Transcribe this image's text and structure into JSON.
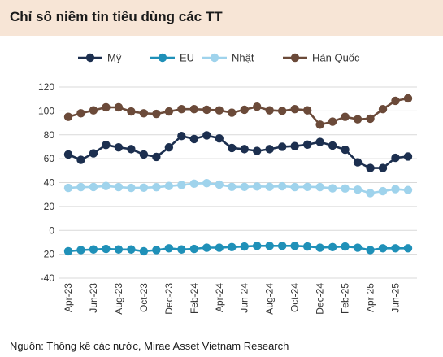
{
  "header": {
    "title": "Chỉ số niềm tin tiêu dùng các TT"
  },
  "footer": {
    "source": "Nguồn: Thống kê các nước, Mirae Asset Vietnam Research"
  },
  "colors": {
    "my": "#1c2f4f",
    "eu": "#1f90b8",
    "nhat": "#9fd3ec",
    "hanquoc": "#6b4a39",
    "grid": "#d9d9d9",
    "header_band": "#f7e5d6"
  },
  "chart_data": {
    "type": "line",
    "title": "",
    "xlabel": "",
    "ylabel": "",
    "ylim": [
      -40,
      120
    ],
    "yticks": [
      -40,
      -20,
      0,
      20,
      40,
      60,
      80,
      100,
      120
    ],
    "grid": "horizontal",
    "legend_position": "top",
    "x": [
      "Apr-23",
      "May-23",
      "Jun-23",
      "Jul-23",
      "Aug-23",
      "Sep-23",
      "Oct-23",
      "Nov-23",
      "Dec-23",
      "Jan-24",
      "Feb-24",
      "Mar-24",
      "Apr-24",
      "May-24",
      "Jun-24",
      "Jul-24",
      "Aug-24",
      "Sep-24",
      "Oct-24",
      "Nov-24",
      "Dec-24",
      "Jan-25",
      "Feb-25",
      "Mar-25",
      "Apr-25",
      "May-25",
      "Jun-25",
      "Jul-25"
    ],
    "xtick_labels": [
      "Apr-23",
      "Jun-23",
      "Aug-23",
      "Oct-23",
      "Dec-23",
      "Feb-24",
      "Apr-24",
      "Jun-24",
      "Aug-24",
      "Oct-24",
      "Dec-24",
      "Feb-25",
      "Apr-25",
      "Jun-25"
    ],
    "series": [
      {
        "name": "Mỹ",
        "color_key": "my",
        "values": [
          63.5,
          59,
          64.5,
          71.5,
          69.5,
          68,
          63.5,
          61.5,
          69.5,
          79,
          76.5,
          79.5,
          77,
          69,
          68,
          66.5,
          68,
          70,
          70.5,
          71.8,
          74,
          71,
          67.5,
          57,
          52.2,
          52.2,
          60.7,
          61.8
        ]
      },
      {
        "name": "EU",
        "color_key": "eu",
        "values": [
          -17.5,
          -16.5,
          -16,
          -15.5,
          -16,
          -16,
          -17.5,
          -16.5,
          -15,
          -16,
          -15.5,
          -14.5,
          -14.5,
          -14,
          -13.5,
          -13,
          -13,
          -13,
          -13,
          -13.5,
          -14.5,
          -14,
          -13.5,
          -14.5,
          -16.5,
          -15,
          -15,
          -15
        ]
      },
      {
        "name": "Nhật",
        "color_key": "nhat",
        "values": [
          35.5,
          36.2,
          36.3,
          37.1,
          36.2,
          35.5,
          35.7,
          36.1,
          37.1,
          38.0,
          39.1,
          39.5,
          38.3,
          36.4,
          36.4,
          36.7,
          36.5,
          36.9,
          36.2,
          36.4,
          36.2,
          35.2,
          35.0,
          34.1,
          31.2,
          32.8,
          34.5,
          33.7
        ]
      },
      {
        "name": "Hàn Quốc",
        "color_key": "hanquoc",
        "values": [
          95,
          98,
          100.5,
          103,
          103,
          99.5,
          98,
          97.5,
          99.5,
          101.5,
          101.5,
          101,
          100.5,
          98.5,
          101,
          103.5,
          100.5,
          100,
          101.5,
          100.5,
          88.5,
          91,
          95,
          93,
          93.5,
          101.5,
          108.5,
          110.5
        ]
      }
    ]
  }
}
